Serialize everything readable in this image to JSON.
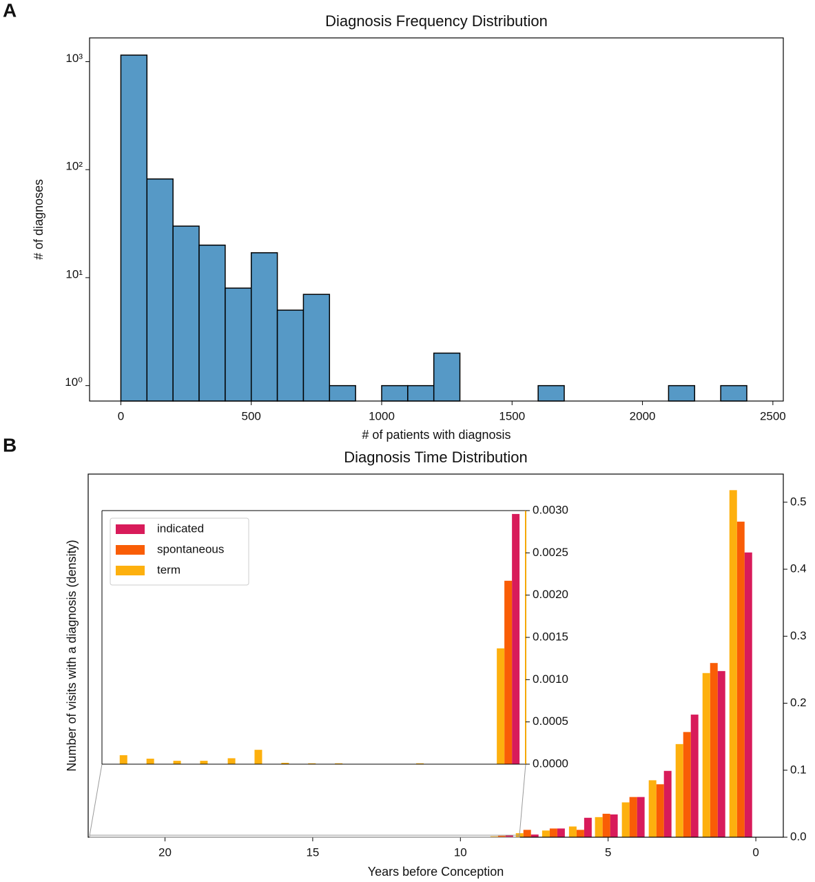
{
  "chart_data": [
    {
      "type": "histogram",
      "panel": "A",
      "title": "Diagnosis Frequency Distribution",
      "xlabel": "# of patients with diagnosis",
      "ylabel": "# of diagnoses",
      "bins": [
        0,
        100,
        200,
        300,
        400,
        500,
        600,
        700,
        800,
        900,
        1000,
        1100,
        1200,
        1300,
        1400,
        1500,
        1600,
        1700,
        1800,
        1900,
        2000,
        2100,
        2200,
        2300,
        2400
      ],
      "values": [
        1150,
        82,
        30,
        20,
        8,
        17,
        5,
        7,
        1,
        0,
        1,
        1,
        2,
        0,
        0,
        0,
        1,
        0,
        0,
        0,
        0,
        1,
        0,
        1
      ],
      "color": "#5699c6",
      "log_y": true,
      "xlim": [
        -120,
        2540
      ],
      "xticks": [
        0,
        500,
        1000,
        1500,
        2000,
        2500
      ],
      "ylim": [
        0.72,
        1660
      ],
      "yticks": [
        {
          "value": 1,
          "label": "10⁰"
        },
        {
          "value": 10,
          "label": "10¹"
        },
        {
          "value": 100,
          "label": "10²"
        },
        {
          "value": 1000,
          "label": "10³"
        }
      ]
    },
    {
      "type": "bar",
      "panel": "B",
      "title": "Diagnosis Time Distribution",
      "xlabel": "Years before Conception",
      "ylabel": "Number of visits with a diagnosis (density)",
      "x": [
        0.51,
        1.42,
        2.33,
        3.24,
        4.15,
        5.06,
        5.94,
        6.85,
        7.74,
        8.6
      ],
      "series": [
        {
          "name": "indicated",
          "color": "#d81b5a",
          "values": [
            0.425,
            0.248,
            0.183,
            0.099,
            0.06,
            0.034,
            0.029,
            0.013,
            0.004,
            0.003
          ]
        },
        {
          "name": "spontaneous",
          "color": "#f95d06",
          "values": [
            0.471,
            0.26,
            0.157,
            0.079,
            0.06,
            0.035,
            0.011,
            0.013,
            0.011,
            0.0022
          ]
        },
        {
          "name": "term",
          "color": "#fdb00e",
          "values": [
            0.518,
            0.245,
            0.139,
            0.085,
            0.052,
            0.03,
            0.016,
            0.01,
            0.006,
            0.0014
          ]
        }
      ],
      "xlim": [
        22.6,
        -0.93
      ],
      "xticks": [
        20,
        15,
        10,
        5,
        0
      ],
      "ylim": [
        0,
        0.542
      ],
      "y_axis_side": "right",
      "yticks": [
        {
          "value": 0,
          "label": "0.0"
        },
        0.1,
        0.2,
        0.3,
        0.4,
        0.5
      ]
    },
    {
      "type": "bar",
      "inset_of": 1,
      "legend": "upper left",
      "x": [
        21.55,
        20.63,
        19.71,
        18.79,
        17.84,
        16.92,
        16.0,
        15.08,
        14.16,
        11.37,
        8.6
      ],
      "series": [
        {
          "color": "#d81b5a",
          "values": [
            0,
            0,
            0,
            0,
            0,
            0,
            0,
            0,
            0,
            0,
            0.00296
          ]
        },
        {
          "color": "#f95d06",
          "values": [
            0,
            0,
            0,
            0,
            0,
            0,
            0,
            0,
            0,
            0,
            0.00217
          ]
        },
        {
          "color": "#fdb00e",
          "values": [
            0.000106,
            6.5e-05,
            4e-05,
            4e-05,
            7e-05,
            0.00017,
            1.6e-05,
            1e-05,
            1e-05,
            1e-05,
            0.00137
          ]
        }
      ],
      "xlim": [
        22.55,
        8.0
      ],
      "ylim": [
        0,
        0.003
      ],
      "y_axis_side": "right",
      "yticks": [
        {
          "value": 0,
          "label": "0.0000"
        },
        {
          "value": 0.0005,
          "label": "0.0005"
        },
        {
          "value": 0.001,
          "label": "0.0010"
        },
        {
          "value": 0.0015,
          "label": "0.0015"
        },
        {
          "value": 0.002,
          "label": "0.0020"
        },
        {
          "value": 0.0025,
          "label": "0.0025"
        },
        {
          "value": 0.003,
          "label": "0.0030"
        }
      ]
    }
  ]
}
